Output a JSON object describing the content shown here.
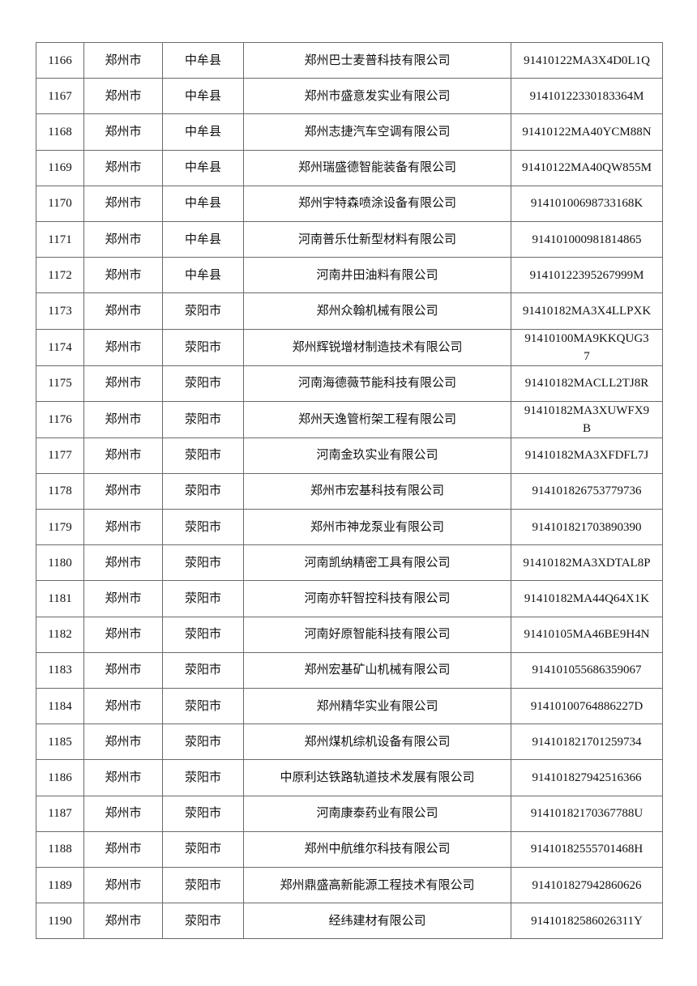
{
  "rows": [
    {
      "no": "1166",
      "city": "郑州市",
      "county": "中牟县",
      "company": "郑州巴士麦普科技有限公司",
      "code": "91410122MA3X4D0L1Q"
    },
    {
      "no": "1167",
      "city": "郑州市",
      "county": "中牟县",
      "company": "郑州市盛意发实业有限公司",
      "code": "91410122330183364M"
    },
    {
      "no": "1168",
      "city": "郑州市",
      "county": "中牟县",
      "company": "郑州志捷汽车空调有限公司",
      "code": "91410122MA40YCM88N"
    },
    {
      "no": "1169",
      "city": "郑州市",
      "county": "中牟县",
      "company": "郑州瑞盛德智能装备有限公司",
      "code": "91410122MA40QW855M"
    },
    {
      "no": "1170",
      "city": "郑州市",
      "county": "中牟县",
      "company": "郑州宇特森喷涂设备有限公司",
      "code": "91410100698733168K"
    },
    {
      "no": "1171",
      "city": "郑州市",
      "county": "中牟县",
      "company": "河南普乐仕新型材料有限公司",
      "code": "914101000981814865"
    },
    {
      "no": "1172",
      "city": "郑州市",
      "county": "中牟县",
      "company": "河南井田油料有限公司",
      "code": "91410122395267999M"
    },
    {
      "no": "1173",
      "city": "郑州市",
      "county": "荥阳市",
      "company": "郑州众翰机械有限公司",
      "code": "91410182MA3X4LLPXK"
    },
    {
      "no": "1174",
      "city": "郑州市",
      "county": "荥阳市",
      "company": "郑州辉锐增材制造技术有限公司",
      "code": "91410100MA9KKQUG37"
    },
    {
      "no": "1175",
      "city": "郑州市",
      "county": "荥阳市",
      "company": "河南海德薇节能科技有限公司",
      "code": "91410182MACLL2TJ8R"
    },
    {
      "no": "1176",
      "city": "郑州市",
      "county": "荥阳市",
      "company": "郑州天逸管桁架工程有限公司",
      "code": "91410182MA3XUWFX9B"
    },
    {
      "no": "1177",
      "city": "郑州市",
      "county": "荥阳市",
      "company": "河南金玖实业有限公司",
      "code": "91410182MA3XFDFL7J"
    },
    {
      "no": "1178",
      "city": "郑州市",
      "county": "荥阳市",
      "company": "郑州市宏基科技有限公司",
      "code": "914101826753779736"
    },
    {
      "no": "1179",
      "city": "郑州市",
      "county": "荥阳市",
      "company": "郑州市神龙泵业有限公司",
      "code": "914101821703890390"
    },
    {
      "no": "1180",
      "city": "郑州市",
      "county": "荥阳市",
      "company": "河南凯纳精密工具有限公司",
      "code": "91410182MA3XDTAL8P"
    },
    {
      "no": "1181",
      "city": "郑州市",
      "county": "荥阳市",
      "company": "河南亦轩智控科技有限公司",
      "code": "91410182MA44Q64X1K"
    },
    {
      "no": "1182",
      "city": "郑州市",
      "county": "荥阳市",
      "company": "河南好原智能科技有限公司",
      "code": "91410105MA46BE9H4N"
    },
    {
      "no": "1183",
      "city": "郑州市",
      "county": "荥阳市",
      "company": "郑州宏基矿山机械有限公司",
      "code": "914101055686359067"
    },
    {
      "no": "1184",
      "city": "郑州市",
      "county": "荥阳市",
      "company": "郑州精华实业有限公司",
      "code": "91410100764886227D"
    },
    {
      "no": "1185",
      "city": "郑州市",
      "county": "荥阳市",
      "company": "郑州煤机综机设备有限公司",
      "code": "914101821701259734"
    },
    {
      "no": "1186",
      "city": "郑州市",
      "county": "荥阳市",
      "company": "中原利达铁路轨道技术发展有限公司",
      "code": "914101827942516366"
    },
    {
      "no": "1187",
      "city": "郑州市",
      "county": "荥阳市",
      "company": "河南康泰药业有限公司",
      "code": "91410182170367788U"
    },
    {
      "no": "1188",
      "city": "郑州市",
      "county": "荥阳市",
      "company": "郑州中航维尔科技有限公司",
      "code": "91410182555701468H"
    },
    {
      "no": "1189",
      "city": "郑州市",
      "county": "荥阳市",
      "company": "郑州鼎盛高新能源工程技术有限公司",
      "code": "914101827942860626"
    },
    {
      "no": "1190",
      "city": "郑州市",
      "county": "荥阳市",
      "company": "经纬建材有限公司",
      "code": "91410182586026311Y"
    }
  ]
}
